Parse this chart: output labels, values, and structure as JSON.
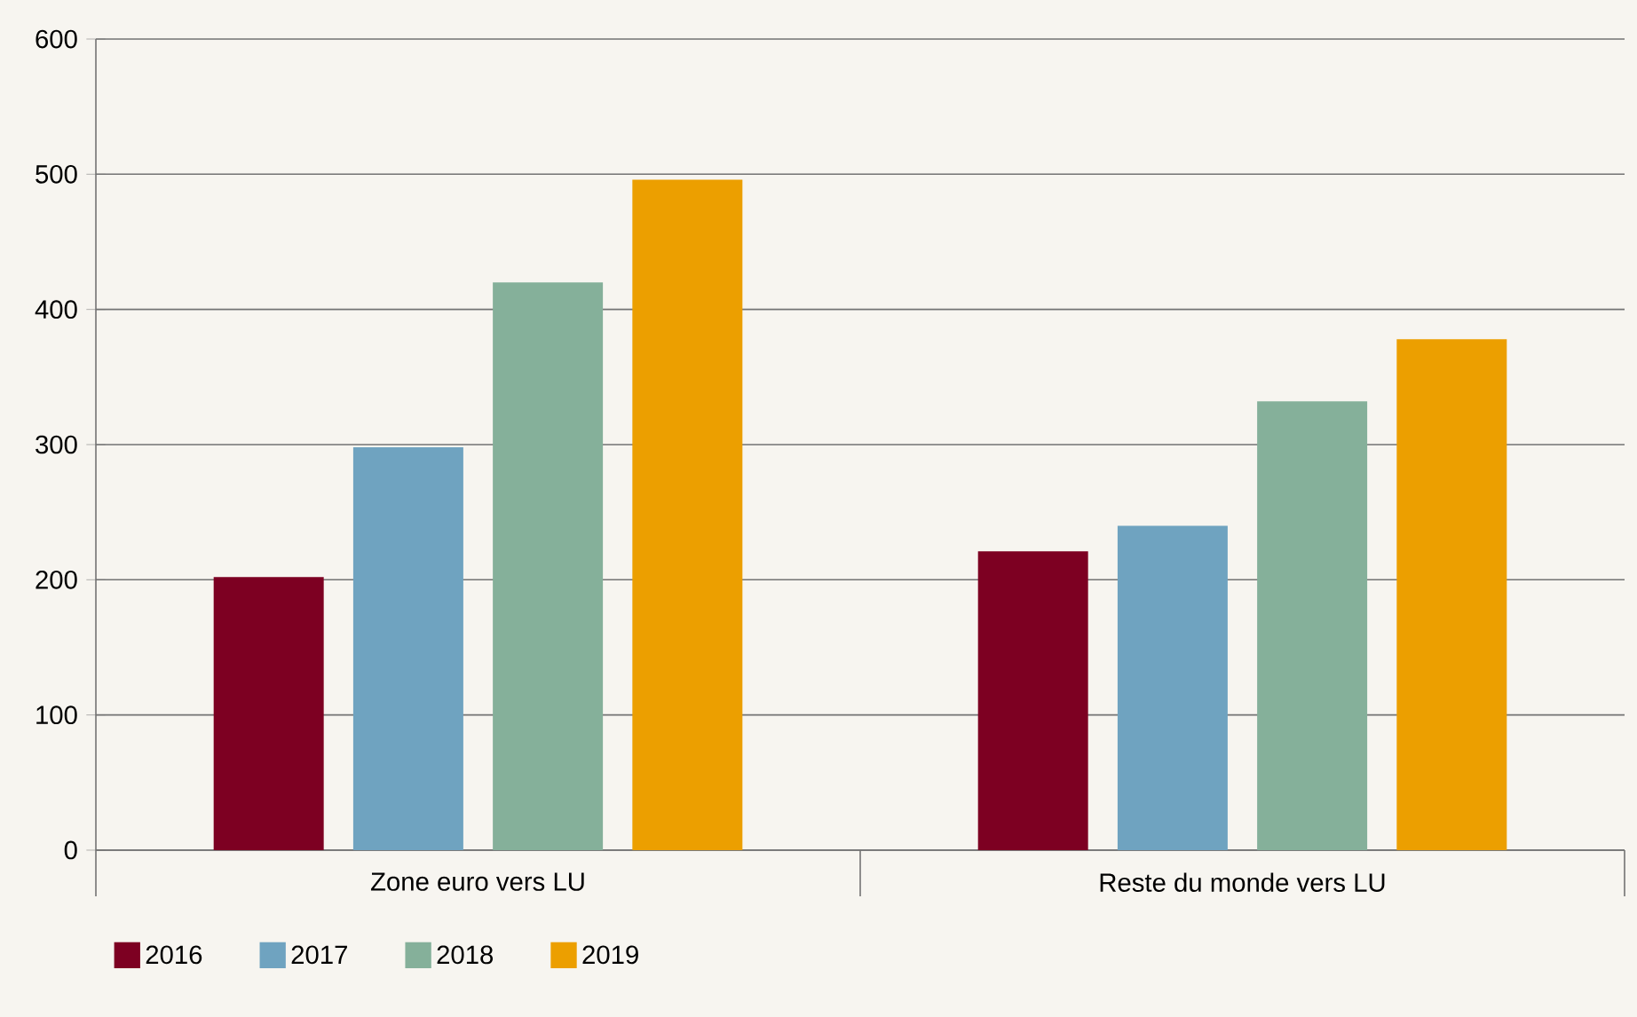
{
  "chart_data": {
    "type": "bar",
    "categories": [
      "Zone euro vers LU",
      "Reste du monde vers LU"
    ],
    "series": [
      {
        "name": "2016",
        "color": "#7d0022",
        "values": [
          202,
          221
        ]
      },
      {
        "name": "2017",
        "color": "#6fa3c0",
        "values": [
          298,
          240
        ]
      },
      {
        "name": "2018",
        "color": "#85b09a",
        "values": [
          420,
          332
        ]
      },
      {
        "name": "2019",
        "color": "#ec9f00",
        "values": [
          496,
          378
        ]
      }
    ],
    "ylim": [
      0,
      600
    ],
    "yticks": [
      0,
      100,
      200,
      300,
      400,
      500,
      600
    ],
    "grid": "y",
    "legend": "bottom left"
  }
}
